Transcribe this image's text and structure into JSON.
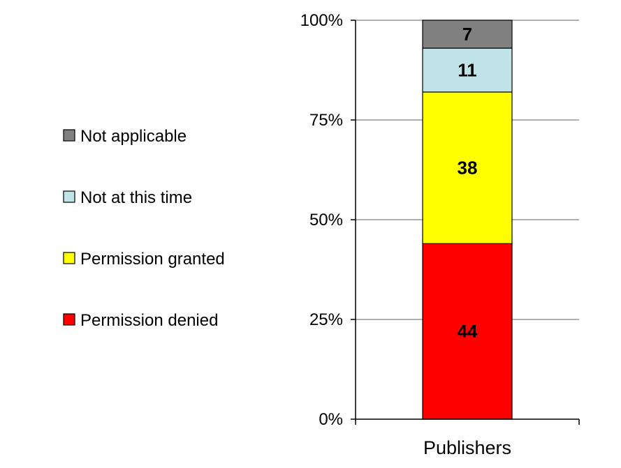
{
  "chart_data": {
    "type": "bar",
    "stacked": true,
    "percent_scale": true,
    "categories": [
      "Publishers"
    ],
    "series": [
      {
        "name": "Permission denied",
        "values": [
          44
        ],
        "color": "#FF0000"
      },
      {
        "name": "Permission granted",
        "values": [
          38
        ],
        "color": "#FFFF00"
      },
      {
        "name": "Not at this time",
        "values": [
          11
        ],
        "color": "#BFE3E6"
      },
      {
        "name": "Not applicable",
        "values": [
          7
        ],
        "color": "#808080"
      }
    ],
    "ylim": [
      0,
      100
    ],
    "yticks": [
      "0%",
      "25%",
      "50%",
      "75%",
      "100%"
    ],
    "grid": true,
    "legend_position": "left",
    "legend_order": [
      "Not applicable",
      "Not at this time",
      "Permission granted",
      "Permission denied"
    ]
  }
}
